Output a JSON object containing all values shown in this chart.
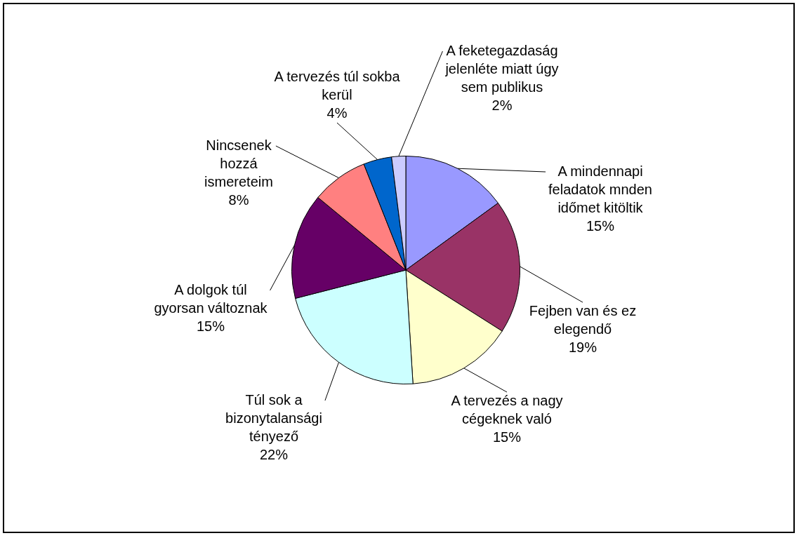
{
  "chart_data": {
    "type": "pie",
    "categories": [
      "A mindennapi feladatok mnden időmet kitöltik",
      "Fejben van és ez elegendő",
      "A tervezés a nagy cégeknek való",
      "Túl sok a bizonytalansági tényező",
      "A dolgok túl gyorsan változnak",
      "Nincsenek hozzá ismereteim",
      "A tervezés túl sokba kerül",
      "A feketegazdaság jelenléte miatt úgy sem publikus"
    ],
    "values": [
      15,
      19,
      15,
      22,
      15,
      8,
      4,
      2
    ],
    "value_labels": [
      "15%",
      "19%",
      "15%",
      "22%",
      "15%",
      "8%",
      "4%",
      "2%"
    ],
    "colors": [
      "#9999ff",
      "#993366",
      "#ffffcc",
      "#ccffff",
      "#660066",
      "#ff8080",
      "#0066cc",
      "#ccccff"
    ],
    "legend": false
  }
}
